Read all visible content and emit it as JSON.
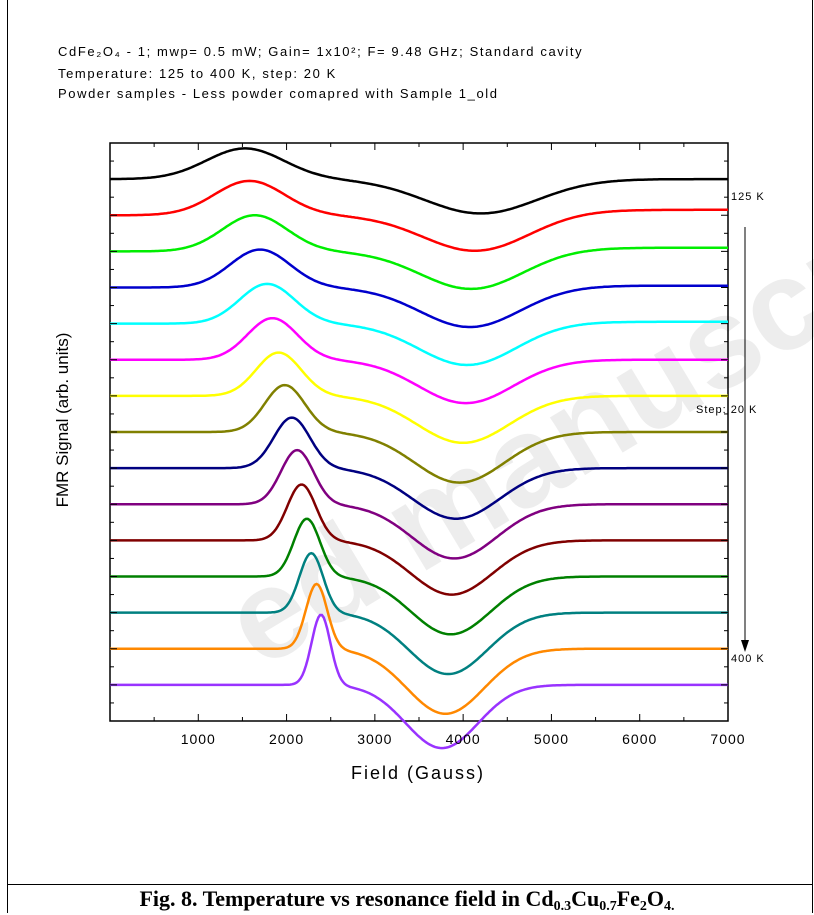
{
  "notes": {
    "line1": "CdFe₂O₄ - 1; mwp= 0.5 mW; Gain= 1x10²; F= 9.48 GHz; Standard cavity",
    "line2": "Temperature: 125 to 400 K, step: 20 K",
    "line3": "Powder samples - Less powder comapred with Sample 1_old"
  },
  "caption": {
    "prefix": "Fig. 8. Temperature vs resonance field in Cd",
    "sub1": "0.3",
    "mid1": "Cu",
    "sub2": "0.7",
    "mid2": "Fe",
    "sub3": "2",
    "mid3": "O",
    "sub4": "4."
  },
  "watermark": "ed manuscript",
  "chart_data": {
    "type": "line",
    "xlabel": "Field (Gauss)",
    "ylabel": "FMR Signal (arb. units)",
    "xlim": [
      0,
      7000
    ],
    "xticks": [
      1000,
      2000,
      3000,
      4000,
      5000,
      6000,
      7000
    ],
    "x_tick_labels": [
      "1000",
      "2000",
      "3000",
      "4000",
      "5000",
      "6000",
      "7000"
    ],
    "ylim": [
      0,
      16
    ],
    "y_tick_labels_shown": false,
    "grid": false,
    "annotations": {
      "top_label": "125 K",
      "middle_label": "Step: 20 K",
      "bottom_label": "400 K",
      "arrow": "down"
    },
    "series": [
      {
        "color": "#000000",
        "baseline": 15.0,
        "peak_x": 1530,
        "peak_h": 0.85,
        "peak_w": 620,
        "trough_x": 4200,
        "trough_h": 0.95,
        "trough_w": 900,
        "right": 0.0
      },
      {
        "color": "#ff0000",
        "baseline": 14.0,
        "peak_x": 1580,
        "peak_h": 0.95,
        "peak_w": 560,
        "trough_x": 4150,
        "trough_h": 1.0,
        "trough_w": 850,
        "right": 0.15
      },
      {
        "color": "#00ee00",
        "baseline": 13.0,
        "peak_x": 1640,
        "peak_h": 1.0,
        "peak_w": 520,
        "trough_x": 4100,
        "trough_h": 1.05,
        "trough_w": 820,
        "right": 0.1
      },
      {
        "color": "#0000cc",
        "baseline": 12.0,
        "peak_x": 1700,
        "peak_h": 1.05,
        "peak_w": 480,
        "trough_x": 4080,
        "trough_h": 1.1,
        "trough_w": 800,
        "right": 0.05
      },
      {
        "color": "#00ffff",
        "baseline": 11.0,
        "peak_x": 1780,
        "peak_h": 1.1,
        "peak_w": 440,
        "trough_x": 4050,
        "trough_h": 1.15,
        "trough_w": 780,
        "right": 0.05
      },
      {
        "color": "#ff00ff",
        "baseline": 10.0,
        "peak_x": 1840,
        "peak_h": 1.15,
        "peak_w": 400,
        "trough_x": 4030,
        "trough_h": 1.2,
        "trough_w": 760,
        "right": 0.0
      },
      {
        "color": "#ffff00",
        "baseline": 9.0,
        "peak_x": 1910,
        "peak_h": 1.2,
        "peak_w": 360,
        "trough_x": 4000,
        "trough_h": 1.3,
        "trough_w": 740,
        "right": 0.0
      },
      {
        "color": "#808000",
        "baseline": 8.0,
        "peak_x": 1980,
        "peak_h": 1.3,
        "peak_w": 320,
        "trough_x": 3960,
        "trough_h": 1.4,
        "trough_w": 720,
        "right": 0.0
      },
      {
        "color": "#000080",
        "baseline": 7.0,
        "peak_x": 2060,
        "peak_h": 1.4,
        "peak_w": 290,
        "trough_x": 3920,
        "trough_h": 1.4,
        "trough_w": 700,
        "right": 0.0
      },
      {
        "color": "#800080",
        "baseline": 6.0,
        "peak_x": 2120,
        "peak_h": 1.5,
        "peak_w": 260,
        "trough_x": 3900,
        "trough_h": 1.5,
        "trough_w": 680,
        "right": 0.0
      },
      {
        "color": "#800000",
        "baseline": 5.0,
        "peak_x": 2170,
        "peak_h": 1.55,
        "peak_w": 230,
        "trough_x": 3870,
        "trough_h": 1.5,
        "trough_w": 660,
        "right": 0.0
      },
      {
        "color": "#008000",
        "baseline": 4.0,
        "peak_x": 2230,
        "peak_h": 1.6,
        "peak_w": 210,
        "trough_x": 3860,
        "trough_h": 1.6,
        "trough_w": 640,
        "right": 0.0
      },
      {
        "color": "#008080",
        "baseline": 3.0,
        "peak_x": 2280,
        "peak_h": 1.65,
        "peak_w": 190,
        "trough_x": 3830,
        "trough_h": 1.7,
        "trough_w": 630,
        "right": 0.0
      },
      {
        "color": "#ff8800",
        "baseline": 2.0,
        "peak_x": 2340,
        "peak_h": 1.8,
        "peak_w": 170,
        "trough_x": 3800,
        "trough_h": 1.8,
        "trough_w": 620,
        "right": 0.0
      },
      {
        "color": "#9933ff",
        "baseline": 1.0,
        "peak_x": 2390,
        "peak_h": 1.95,
        "peak_w": 150,
        "trough_x": 3760,
        "trough_h": 1.75,
        "trough_w": 580,
        "right": 0.0
      }
    ]
  }
}
